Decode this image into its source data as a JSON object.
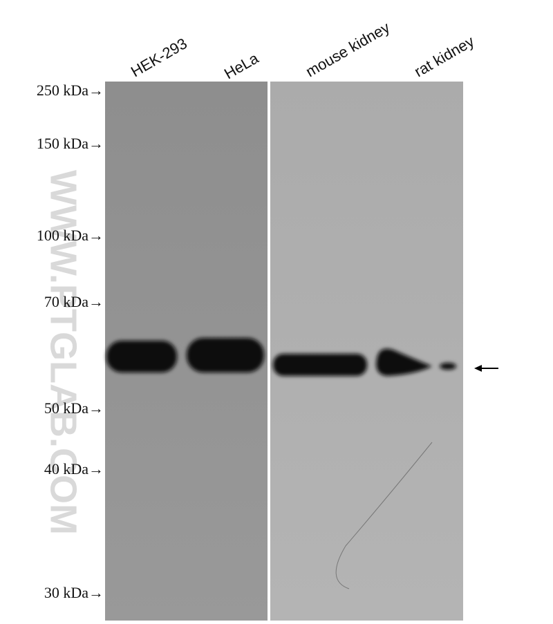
{
  "lanes": [
    "HEK-293",
    "HeLa",
    "mouse kidney",
    "rat kidney"
  ],
  "markers": [
    "250 kDa→",
    "150 kDa→",
    "100 kDa→",
    "70 kDa→",
    "50 kDa→",
    "40 kDa→",
    "30 kDa→"
  ],
  "watermark": "WWW.PTGLAB.COM"
}
